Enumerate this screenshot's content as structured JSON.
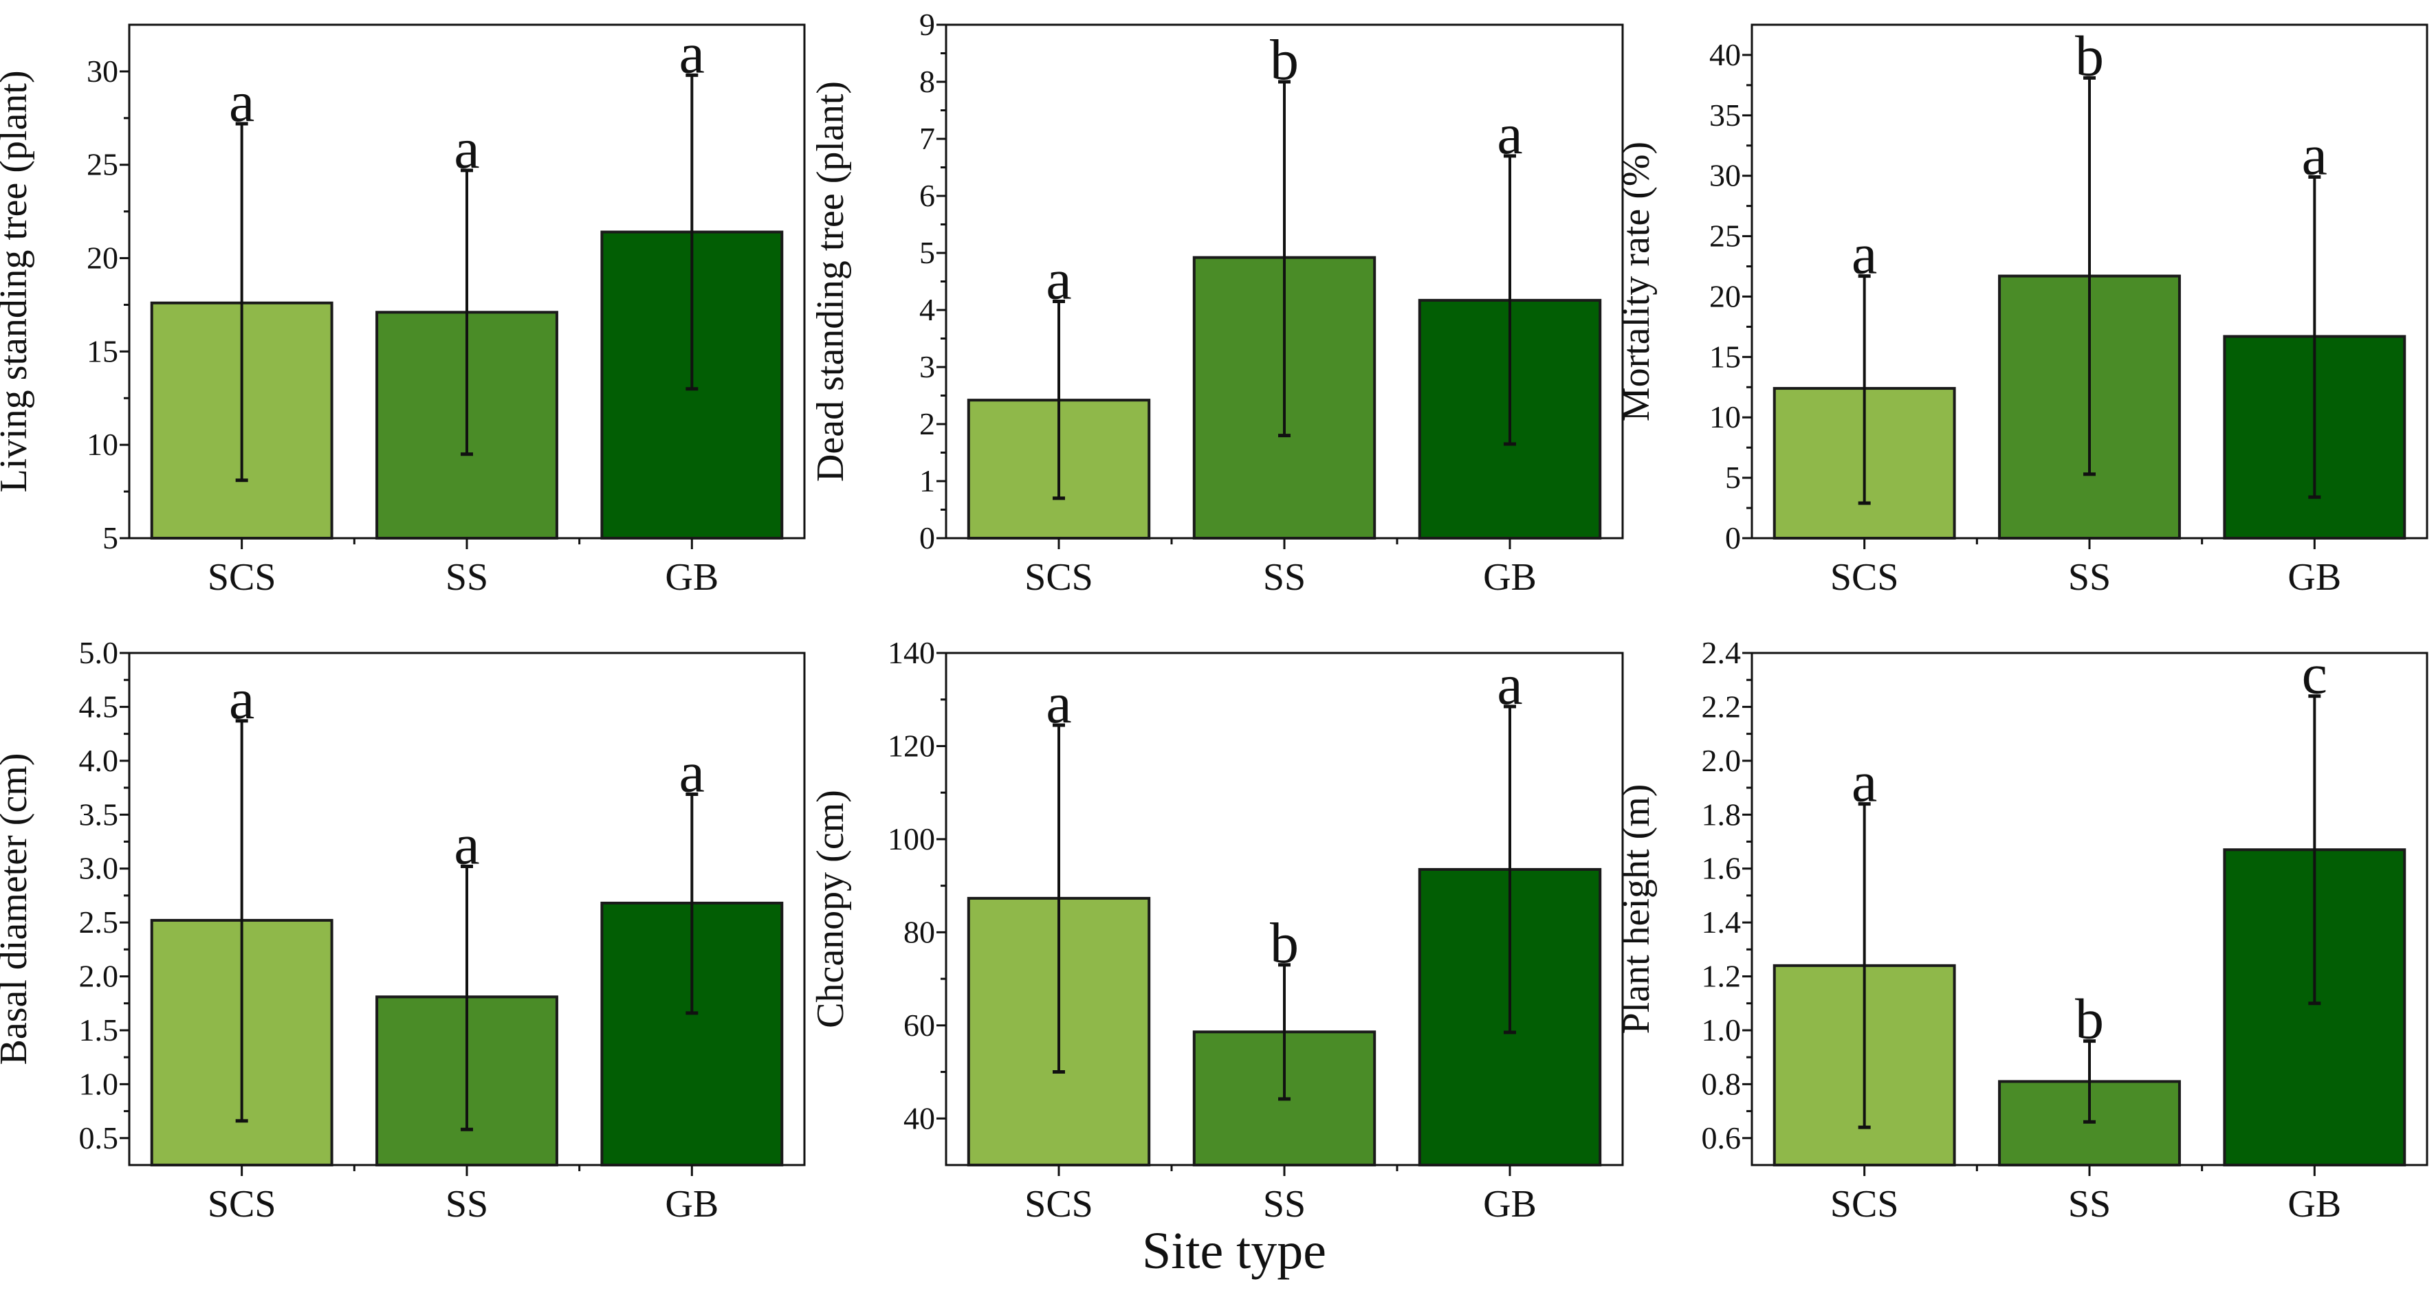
{
  "figure": {
    "x_title": "Site type"
  },
  "colors": {
    "SCS": "#8fb84a",
    "SS": "#4a8c27",
    "GB": "#025e04",
    "axis": "#111111"
  },
  "chart_data": [
    {
      "type": "bar",
      "title": "",
      "ylabel": "Living standing tree (plant)",
      "xlabel": "",
      "categories": [
        "SCS",
        "SS",
        "GB"
      ],
      "values": [
        17.6,
        17.1,
        21.4
      ],
      "error_low": [
        8.1,
        9.5,
        13.0
      ],
      "error_high": [
        27.2,
        24.7,
        29.8
      ],
      "significance": [
        "a",
        "a",
        "a"
      ],
      "ylim": [
        5,
        32.5
      ],
      "yticks": [
        5,
        10,
        15,
        20,
        25,
        30
      ],
      "ytick_labels": [
        "5",
        "10",
        "15",
        "20",
        "25",
        "30"
      ],
      "grid": false
    },
    {
      "type": "bar",
      "title": "",
      "ylabel": "Dead standing tree (plant)",
      "xlabel": "",
      "categories": [
        "SCS",
        "SS",
        "GB"
      ],
      "values": [
        2.42,
        4.92,
        4.17
      ],
      "error_low": [
        0.7,
        1.8,
        1.65
      ],
      "error_high": [
        4.15,
        8.0,
        6.7
      ],
      "significance": [
        "a",
        "b",
        "a"
      ],
      "ylim": [
        0,
        9
      ],
      "yticks": [
        0,
        1,
        2,
        3,
        4,
        5,
        6,
        7,
        8,
        9
      ],
      "ytick_labels": [
        "0",
        "1",
        "2",
        "3",
        "4",
        "5",
        "6",
        "7",
        "8",
        "9"
      ],
      "grid": false
    },
    {
      "type": "bar",
      "title": "",
      "ylabel": "Mortality rate (%)",
      "xlabel": "",
      "categories": [
        "SCS",
        "SS",
        "GB"
      ],
      "values": [
        12.4,
        21.7,
        16.7
      ],
      "error_low": [
        2.9,
        5.3,
        3.4
      ],
      "error_high": [
        21.7,
        38.1,
        29.9
      ],
      "significance": [
        "a",
        "b",
        "a"
      ],
      "ylim": [
        0,
        42.5
      ],
      "yticks": [
        0,
        5,
        10,
        15,
        20,
        25,
        30,
        35,
        40
      ],
      "ytick_labels": [
        "0",
        "5",
        "10",
        "15",
        "20",
        "25",
        "30",
        "35",
        "40"
      ],
      "grid": false
    },
    {
      "type": "bar",
      "title": "",
      "ylabel": "Basal diameter (cm)",
      "xlabel": "",
      "categories": [
        "SCS",
        "SS",
        "GB"
      ],
      "values": [
        2.52,
        1.81,
        2.68
      ],
      "error_low": [
        0.66,
        0.58,
        1.66
      ],
      "error_high": [
        4.37,
        3.02,
        3.69
      ],
      "significance": [
        "a",
        "a",
        "a"
      ],
      "ylim": [
        0.25,
        5.0
      ],
      "yticks": [
        0.5,
        1.0,
        1.5,
        2.0,
        2.5,
        3.0,
        3.5,
        4.0,
        4.5,
        5.0
      ],
      "ytick_labels": [
        "0.5",
        "1.0",
        "1.5",
        "2.0",
        "2.5",
        "3.0",
        "3.5",
        "4.0",
        "4.5",
        "5.0"
      ],
      "grid": false
    },
    {
      "type": "bar",
      "title": "",
      "ylabel": "Chcanopy (cm)",
      "xlabel": "Site type",
      "categories": [
        "SCS",
        "SS",
        "GB"
      ],
      "values": [
        87.3,
        58.6,
        93.5
      ],
      "error_low": [
        50.0,
        44.2,
        58.5
      ],
      "error_high": [
        124.5,
        73.0,
        128.5
      ],
      "significance": [
        "a",
        "b",
        "a"
      ],
      "ylim": [
        30,
        140
      ],
      "yticks": [
        40,
        60,
        80,
        100,
        120,
        140
      ],
      "ytick_labels": [
        "40",
        "60",
        "80",
        "100",
        "120",
        "140"
      ],
      "grid": false
    },
    {
      "type": "bar",
      "title": "",
      "ylabel": "Plant height (m)",
      "xlabel": "",
      "categories": [
        "SCS",
        "SS",
        "GB"
      ],
      "values": [
        1.24,
        0.81,
        1.67
      ],
      "error_low": [
        0.64,
        0.66,
        1.1
      ],
      "error_high": [
        1.84,
        0.96,
        2.24
      ],
      "significance": [
        "a",
        "b",
        "c"
      ],
      "ylim": [
        0.5,
        2.4
      ],
      "yticks": [
        0.6,
        0.8,
        1.0,
        1.2,
        1.4,
        1.6,
        1.8,
        2.0,
        2.2,
        2.4
      ],
      "ytick_labels": [
        "0.6",
        "0.8",
        "1.0",
        "1.2",
        "1.4",
        "1.6",
        "1.8",
        "2.0",
        "2.2",
        "2.4"
      ],
      "grid": false
    }
  ]
}
